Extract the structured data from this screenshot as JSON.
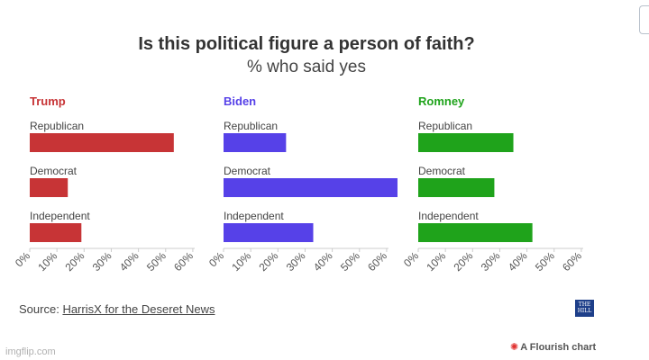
{
  "title": "Is this political figure a person of faith?",
  "subtitle": "% who said yes",
  "source": {
    "label": "Source:",
    "link_text": "HarrisX for the Deseret News"
  },
  "logo_text": "THE HILL",
  "watermark": "imgflip.com",
  "flourish": {
    "icon": "flourish-star-icon",
    "text": "A Flourish chart"
  },
  "chart_data": [
    {
      "type": "bar",
      "orientation": "horizontal",
      "title": "Trump",
      "color": "#c73436",
      "categories": [
        "Republican",
        "Democrat",
        "Independent"
      ],
      "values": [
        53,
        14,
        19
      ],
      "xlim": [
        0,
        65
      ],
      "ticks": [
        0,
        10,
        20,
        30,
        40,
        50,
        60
      ],
      "tick_labels": [
        "0%",
        "10%",
        "20%",
        "30%",
        "40%",
        "50%",
        "60%"
      ]
    },
    {
      "type": "bar",
      "orientation": "horizontal",
      "title": "Biden",
      "color": "#5641e8",
      "categories": [
        "Republican",
        "Democrat",
        "Independent"
      ],
      "values": [
        23,
        64,
        33
      ],
      "xlim": [
        0,
        65
      ],
      "ticks": [
        0,
        10,
        20,
        30,
        40,
        50,
        60
      ],
      "tick_labels": [
        "0%",
        "10%",
        "20%",
        "30%",
        "40%",
        "50%",
        "60%"
      ]
    },
    {
      "type": "bar",
      "orientation": "horizontal",
      "title": "Romney",
      "color": "#1fa31b",
      "categories": [
        "Republican",
        "Democrat",
        "Independent"
      ],
      "values": [
        35,
        28,
        42
      ],
      "xlim": [
        0,
        65
      ],
      "ticks": [
        0,
        10,
        20,
        30,
        40,
        50,
        60
      ],
      "tick_labels": [
        "0%",
        "10%",
        "20%",
        "30%",
        "40%",
        "50%",
        "60%"
      ]
    }
  ]
}
